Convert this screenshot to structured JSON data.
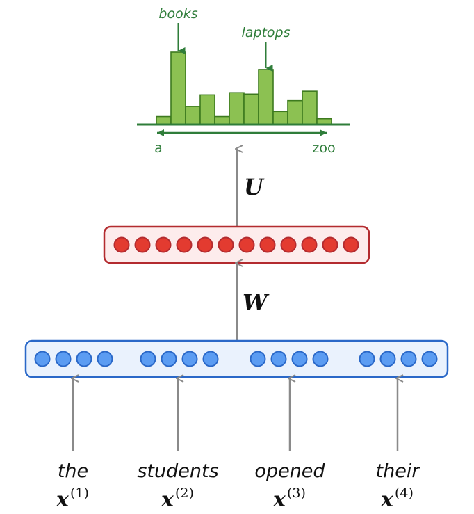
{
  "colors": {
    "bar_fill": "#8cc152",
    "bar_stroke": "#3d7a1f",
    "annotation": "#2f7d3a",
    "hidden_fill": "#e33b30",
    "hidden_stroke": "#b32b2f",
    "input_fill": "#5b9cf2",
    "input_stroke": "#2a68c8",
    "arrow": "#8a8a8a"
  },
  "distribution": {
    "bars": [
      0.11,
      1.0,
      0.25,
      0.41,
      0.11,
      0.44,
      0.42,
      0.76,
      0.18,
      0.33,
      0.46,
      0.08
    ],
    "annotations": [
      {
        "label": "books",
        "bar": 1
      },
      {
        "label": "laptops",
        "bar": 7
      }
    ],
    "axis_start": "a",
    "axis_end": "zoo"
  },
  "weights": {
    "upper": "U",
    "lower": "W"
  },
  "hidden_layer": {
    "units": 12
  },
  "inputs": [
    {
      "word": "the",
      "var": "x",
      "index": "(1)",
      "units": 4
    },
    {
      "word": "students",
      "var": "x",
      "index": "(2)",
      "units": 4
    },
    {
      "word": "opened",
      "var": "x",
      "index": "(3)",
      "units": 4
    },
    {
      "word": "their",
      "var": "x",
      "index": "(4)",
      "units": 4
    }
  ]
}
